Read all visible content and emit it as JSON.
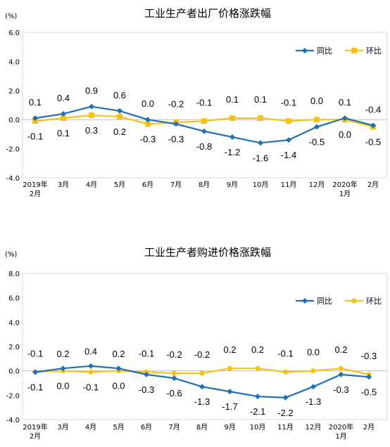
{
  "chart_data": [
    {
      "type": "line",
      "title": "工业生产者出厂价格涨跌幅",
      "unit": "(%)",
      "ylim": [
        -4.0,
        6.0
      ],
      "yticks": [
        "6.0",
        "4.0",
        "2.0",
        "0.0",
        "-2.0",
        "-4.0"
      ],
      "ytick_values": [
        6,
        4,
        2,
        0,
        -2,
        -4
      ],
      "categories": [
        "2019年\n2月",
        "3月",
        "4月",
        "5月",
        "6月",
        "7月",
        "8月",
        "9月",
        "10月",
        "11月",
        "12月",
        "2020年\n1月",
        "2月"
      ],
      "legend_position": "top-right",
      "grid": false,
      "series": [
        {
          "name": "同比",
          "color": "#1f6fb5",
          "marker": "diamond",
          "values": [
            0.1,
            0.4,
            0.9,
            0.6,
            0.0,
            -0.3,
            -0.8,
            -1.2,
            -1.6,
            -1.4,
            -0.5,
            0.1,
            -0.4
          ],
          "labels": [
            "0.1",
            "0.4",
            "0.9",
            "0.6",
            "0.0",
            "-0.3",
            "-0.8",
            "-1.2",
            "-1.6",
            "-1.4",
            "-0.5",
            "0.1",
            "-0.4"
          ]
        },
        {
          "name": "环比",
          "color": "#f5c21b",
          "marker": "square",
          "values": [
            -0.1,
            0.1,
            0.3,
            0.2,
            -0.3,
            -0.2,
            -0.1,
            0.1,
            0.1,
            -0.1,
            0.0,
            0.0,
            -0.5
          ],
          "labels": [
            "-0.1",
            "0.1",
            "0.3",
            "0.2",
            "-0.3",
            "-0.2",
            "-0.1",
            "0.1",
            "0.1",
            "-0.1",
            "0.0",
            "0.0",
            "-0.5"
          ]
        }
      ]
    },
    {
      "type": "line",
      "title": "工业生产者购进价格涨跌幅",
      "unit": "(%)",
      "ylim": [
        -4.0,
        8.0
      ],
      "yticks": [
        "8.0",
        "6.0",
        "4.0",
        "2.0",
        "0.0",
        "-2.0",
        "-4.0"
      ],
      "ytick_values": [
        8,
        6,
        4,
        2,
        0,
        -2,
        -4
      ],
      "categories": [
        "2019年\n2月",
        "3月",
        "4月",
        "5月",
        "6月",
        "7月",
        "8月",
        "9月",
        "10月",
        "11月",
        "12月",
        "2020年\n1月",
        "2月"
      ],
      "legend_position": "top-right",
      "grid": false,
      "series": [
        {
          "name": "同比",
          "color": "#1f6fb5",
          "marker": "diamond",
          "values": [
            -0.1,
            0.2,
            0.4,
            0.2,
            -0.3,
            -0.6,
            -1.3,
            -1.7,
            -2.1,
            -2.2,
            -1.3,
            -0.3,
            -0.5
          ],
          "labels": [
            "-0.1",
            "0.2",
            "0.4",
            "0.2",
            "-0.3",
            "-0.6",
            "-1.3",
            "-1.7",
            "-2.1",
            "-2.2",
            "-1.3",
            "-0.3",
            "-0.5"
          ]
        },
        {
          "name": "环比",
          "color": "#f5c21b",
          "marker": "circle",
          "values": [
            -0.1,
            0.0,
            -0.1,
            0.0,
            -0.1,
            -0.2,
            -0.2,
            0.2,
            0.2,
            -0.1,
            0.0,
            0.2,
            -0.3
          ],
          "labels": [
            "-0.1",
            "0.0",
            "-0.1",
            "0.0",
            "-0.1",
            "-0.2",
            "-0.2",
            "0.2",
            "0.2",
            "-0.1",
            "0.0",
            "0.2",
            "-0.3"
          ]
        }
      ]
    }
  ]
}
